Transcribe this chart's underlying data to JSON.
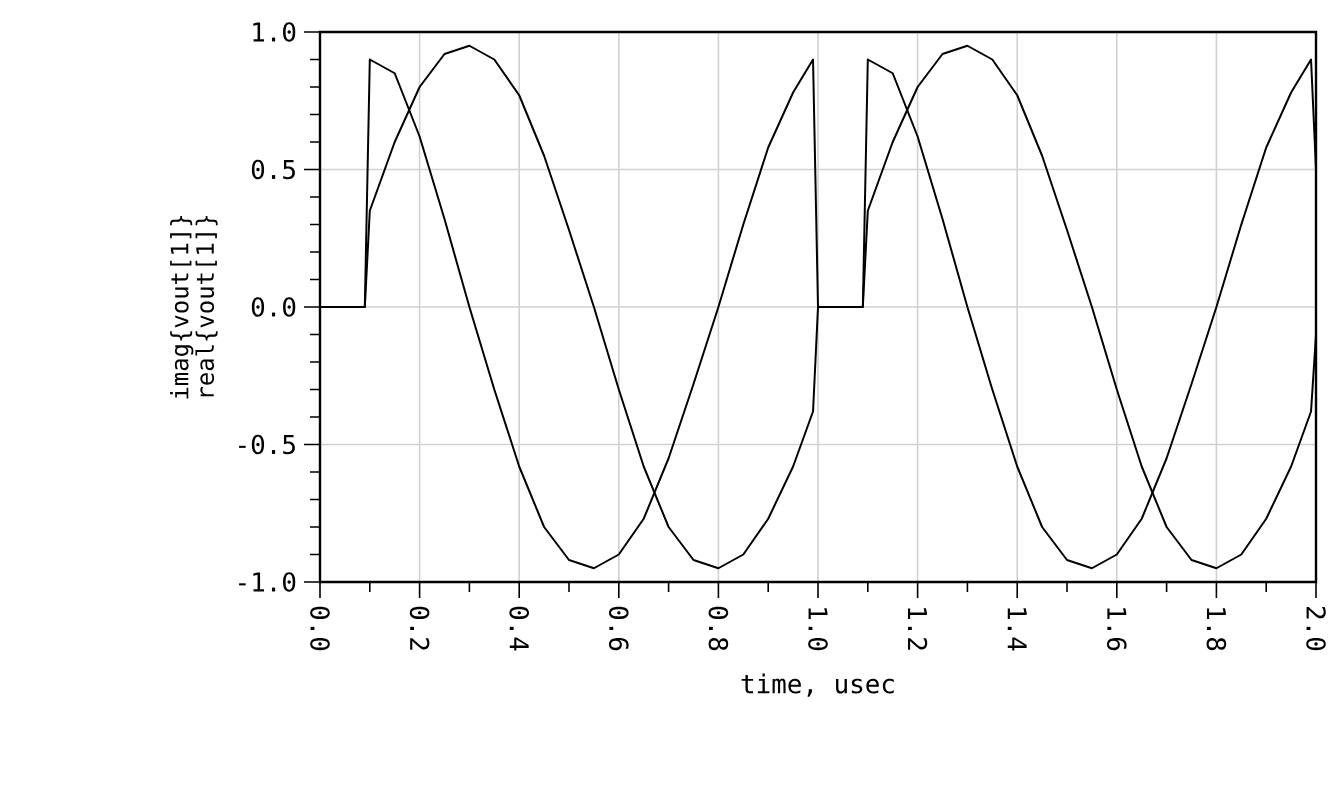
{
  "chart_data": {
    "type": "line",
    "xlabel": "time, usec",
    "ylabel": [
      "imag{vout[1]}",
      "real{vout[1]}"
    ],
    "xlim": [
      0,
      2.0
    ],
    "ylim": [
      -1.0,
      1.0
    ],
    "xticks": [
      {
        "value": 0,
        "label": "0.0"
      },
      {
        "value": 0.2,
        "label": "0.2"
      },
      {
        "value": 0.4,
        "label": "0.4"
      },
      {
        "value": 0.6,
        "label": "0.6"
      },
      {
        "value": 0.8,
        "label": "0.8"
      },
      {
        "value": 1.0,
        "label": "1.0"
      },
      {
        "value": 1.2,
        "label": "1.2"
      },
      {
        "value": 1.4,
        "label": "1.4"
      },
      {
        "value": 1.6,
        "label": "1.6"
      },
      {
        "value": 1.8,
        "label": "1.8"
      },
      {
        "value": 2.0,
        "label": "2.0"
      }
    ],
    "yticks": [
      {
        "value": -1.0,
        "label": "-1.0"
      },
      {
        "value": -0.5,
        "label": "-0.5"
      },
      {
        "value": 0,
        "label": "0.0"
      },
      {
        "value": 0.5,
        "label": "0.5"
      },
      {
        "value": 1.0,
        "label": "1.0"
      }
    ],
    "grid": true,
    "series": [
      {
        "color": "#000000",
        "x": [
          0,
          0.09,
          0.1,
          0.15,
          0.2,
          0.25,
          0.3,
          0.35,
          0.4,
          0.45,
          0.5,
          0.55,
          0.6,
          0.65,
          0.7,
          0.75,
          0.8,
          0.85,
          0.9,
          0.95,
          0.99,
          1.0,
          1.09,
          1.1,
          1.15,
          1.2,
          1.25,
          1.3,
          1.35,
          1.4,
          1.45,
          1.5,
          1.55,
          1.6,
          1.65,
          1.7,
          1.75,
          1.8,
          1.85,
          1.9,
          1.95,
          1.99,
          2.0
        ],
        "values": [
          0,
          0,
          0.9,
          0.85,
          0.62,
          0.32,
          0.0,
          -0.3,
          -0.58,
          -0.8,
          -0.92,
          -0.95,
          -0.9,
          -0.77,
          -0.55,
          -0.28,
          0.0,
          0.3,
          0.58,
          0.78,
          0.9,
          0,
          0,
          0.9,
          0.85,
          0.62,
          0.32,
          0.0,
          -0.3,
          -0.58,
          -0.8,
          -0.92,
          -0.95,
          -0.9,
          -0.77,
          -0.55,
          -0.28,
          0.0,
          0.3,
          0.58,
          0.78,
          0.9,
          0.5
        ]
      },
      {
        "color": "#000000",
        "x": [
          0,
          0.09,
          0.1,
          0.15,
          0.2,
          0.25,
          0.3,
          0.35,
          0.4,
          0.45,
          0.5,
          0.55,
          0.6,
          0.65,
          0.7,
          0.75,
          0.8,
          0.85,
          0.9,
          0.95,
          0.99,
          1.0,
          1.09,
          1.1,
          1.15,
          1.2,
          1.25,
          1.3,
          1.35,
          1.4,
          1.45,
          1.5,
          1.55,
          1.6,
          1.65,
          1.7,
          1.75,
          1.8,
          1.85,
          1.9,
          1.95,
          1.99,
          2.0
        ],
        "values": [
          0,
          0,
          0.35,
          0.6,
          0.8,
          0.92,
          0.95,
          0.9,
          0.77,
          0.55,
          0.28,
          0.0,
          -0.3,
          -0.58,
          -0.8,
          -0.92,
          -0.95,
          -0.9,
          -0.77,
          -0.58,
          -0.38,
          0,
          0,
          0.35,
          0.6,
          0.8,
          0.92,
          0.95,
          0.9,
          0.77,
          0.55,
          0.28,
          0.0,
          -0.3,
          -0.58,
          -0.8,
          -0.92,
          -0.95,
          -0.9,
          -0.77,
          -0.58,
          -0.38,
          -0.1
        ]
      }
    ]
  }
}
